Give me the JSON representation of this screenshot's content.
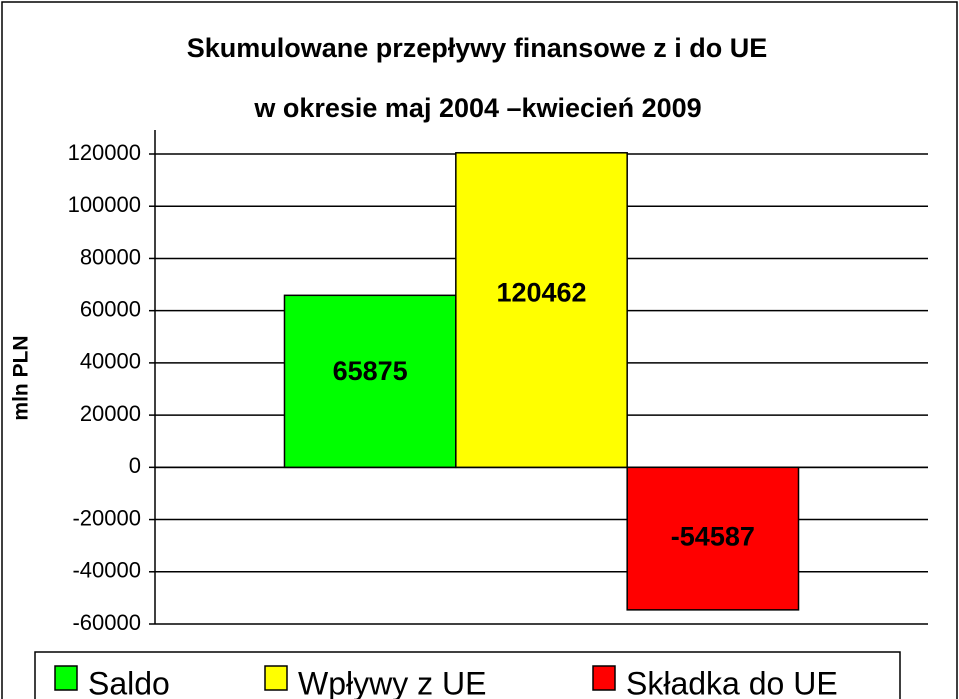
{
  "chart_data": {
    "type": "bar",
    "title": "Skumulowane przepływy finansowe z i do UE",
    "subtitle": "w okresie maj 2004 –kwiecień 2009",
    "y_label": "mln PLN",
    "categories": [
      null
    ],
    "series": [
      {
        "name": "Saldo",
        "color": "#00ff00",
        "values": [
          65875
        ]
      },
      {
        "name": "Wpływy z UE",
        "color": "#ffff00",
        "values": [
          120462
        ]
      },
      {
        "name": "Składka do UE",
        "color": "#ff0000",
        "values": [
          -54587
        ]
      }
    ],
    "ylim": [
      -60000,
      120000
    ],
    "yticks": [
      -60000,
      -40000,
      -20000,
      0,
      20000,
      40000,
      60000,
      80000,
      100000,
      120000
    ],
    "grid": true,
    "legend": "bottom"
  }
}
